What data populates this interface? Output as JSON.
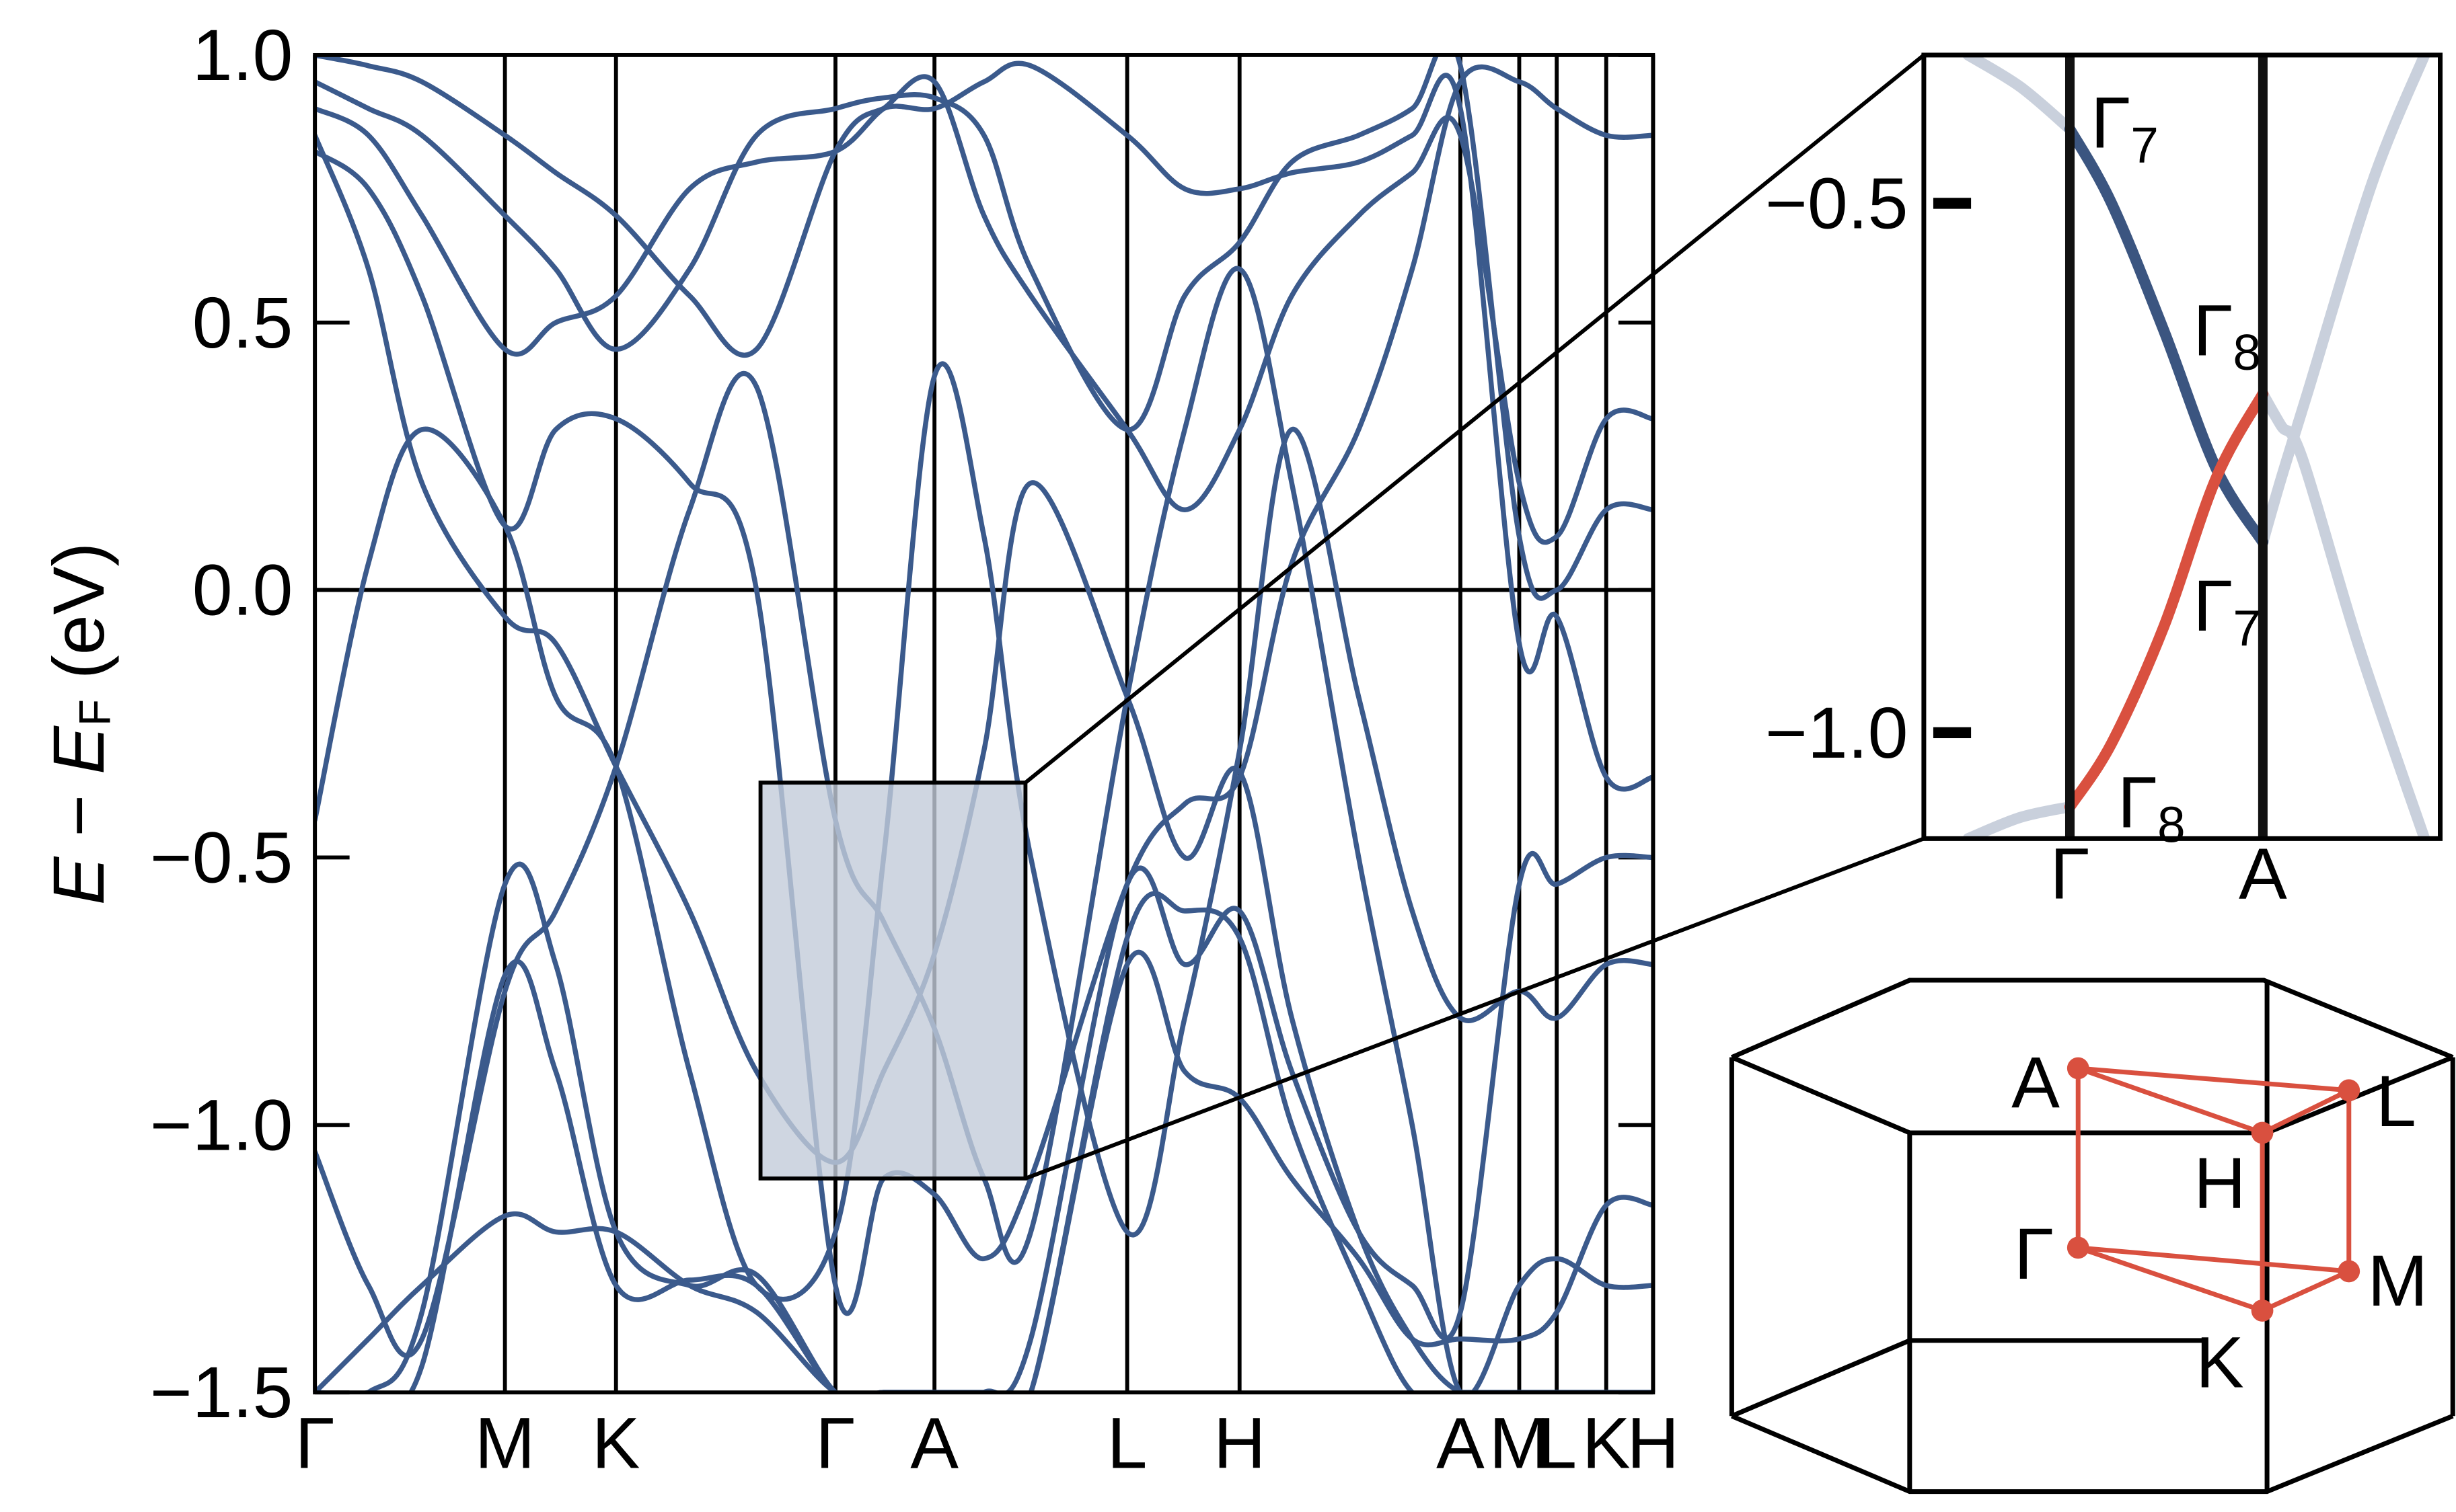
{
  "chart_data": [
    {
      "type": "line",
      "ylabel": [
        "E",
        " − ",
        "E",
        "F",
        " (eV)"
      ],
      "xlim": [
        0,
        1
      ],
      "ylim": [
        -1.5,
        1.0
      ],
      "xticks": [
        {
          "value": 0,
          "label": "Γ"
        },
        {
          "value": 0.142,
          "label": "M"
        },
        {
          "value": 0.225,
          "label": "K"
        },
        {
          "value": 0.389,
          "label": "Γ"
        },
        {
          "value": 0.463,
          "label": "A"
        },
        {
          "value": 0.607,
          "label": "L"
        },
        {
          "value": 0.691,
          "label": "H"
        },
        {
          "value": 0.856,
          "label": "A"
        },
        {
          "value": 0.9,
          "label": "M"
        },
        {
          "value": 0.928,
          "label": "L"
        },
        {
          "value": 0.965,
          "label": "K"
        },
        {
          "value": 1.0,
          "label": "H"
        }
      ],
      "yticks": [
        {
          "value": -1.5,
          "label": "−1.5"
        },
        {
          "value": -1.0,
          "label": "−1.0"
        },
        {
          "value": -0.5,
          "label": "−0.5"
        },
        {
          "value": 0,
          "label": "0.0"
        },
        {
          "value": 0.5,
          "label": "0.5"
        },
        {
          "value": 1.0,
          "label": "1.0"
        }
      ],
      "hlines": [
        0
      ],
      "color": "#3b5a8c",
      "x": [
        0,
        0.04,
        0.08,
        0.142,
        0.18,
        0.225,
        0.28,
        0.33,
        0.389,
        0.425,
        0.463,
        0.5,
        0.535,
        0.607,
        0.65,
        0.691,
        0.73,
        0.78,
        0.82,
        0.856,
        0.9,
        0.928,
        0.965,
        1.0
      ],
      "series": [
        {
          "values": [
            -0.43,
            0.05,
            0.3,
            0.12,
            -0.2,
            -0.33,
            -0.9,
            -1.3,
            -1.2,
            -0.5,
            0.4,
            0.1,
            -0.5,
            -1.2,
            -0.8,
            -0.3,
            0.3,
            -0.2,
            -0.6,
            -0.8,
            -0.75,
            -0.8,
            -0.7,
            -0.7
          ]
        },
        {
          "values": [
            -1.05,
            -1.3,
            -1.4,
            -0.75,
            -0.6,
            -0.33,
            0.15,
            0.38,
            -0.43,
            -0.62,
            -0.82,
            -1.1,
            -1.2,
            -0.2,
            0.3,
            0.6,
            0.2,
            -0.5,
            -1.0,
            -1.5,
            -1.3,
            -1.25,
            -1.3,
            -1.3
          ]
        },
        {
          "values": [
            0.85,
            0.6,
            0.2,
            -0.05,
            -0.1,
            -0.33,
            -0.6,
            -0.9,
            -1.07,
            -0.9,
            -0.68,
            -0.3,
            0.2,
            -0.2,
            -0.5,
            -0.34,
            -0.8,
            -1.2,
            -1.4,
            -1.5,
            -1.5,
            -1.5,
            -1.5,
            -1.5
          ]
        },
        {
          "values": [
            0.82,
            0.75,
            0.55,
            0.12,
            0.3,
            0.32,
            0.2,
            0.0,
            -1.3,
            -1.1,
            -1.13,
            -1.25,
            -1.1,
            -0.55,
            -0.4,
            -0.35,
            0.05,
            0.3,
            0.6,
            0.95,
            0.95,
            0.9,
            0.85,
            0.85
          ]
        },
        {
          "values": [
            0.9,
            0.85,
            0.7,
            0.45,
            0.5,
            0.55,
            0.75,
            0.8,
            0.82,
            0.9,
            0.95,
            0.7,
            0.55,
            0.3,
            0.15,
            0.3,
            0.55,
            0.7,
            0.78,
            0.85,
            0.2,
            0.1,
            0.32,
            0.32
          ]
        },
        {
          "values": [
            0.95,
            0.9,
            0.85,
            0.7,
            0.6,
            0.45,
            0.6,
            0.85,
            0.9,
            0.92,
            0.92,
            0.85,
            0.6,
            0.3,
            0.55,
            0.65,
            0.8,
            0.85,
            0.9,
            0.98,
            0.1,
            0.0,
            0.15,
            0.15
          ]
        },
        {
          "values": [
            1.0,
            0.98,
            0.95,
            0.85,
            0.78,
            0.7,
            0.55,
            0.45,
            0.82,
            0.9,
            0.9,
            0.95,
            0.98,
            0.85,
            0.75,
            0.75,
            0.78,
            0.8,
            0.85,
            0.9,
            -0.1,
            -0.05,
            -0.35,
            -0.35
          ]
        },
        {
          "values": [
            -1.5,
            -1.5,
            -1.35,
            -0.55,
            -0.7,
            -1.2,
            -1.3,
            -1.28,
            -1.5,
            -1.5,
            -1.5,
            -1.5,
            -1.4,
            -0.55,
            -0.7,
            -0.6,
            -0.9,
            -1.2,
            -1.3,
            -1.35,
            -0.55,
            -0.55,
            -0.5,
            -0.5
          ]
        },
        {
          "values": [
            -1.5,
            -1.5,
            -1.45,
            -0.72,
            -0.9,
            -1.3,
            -1.29,
            -1.3,
            -1.5,
            -1.5,
            -1.5,
            -1.5,
            -1.5,
            -0.7,
            -0.9,
            -0.95,
            -1.1,
            -1.25,
            -1.4,
            -1.4,
            -1.4,
            -1.35,
            -1.15,
            -1.15
          ]
        },
        {
          "values": [
            -1.5,
            -1.4,
            -1.3,
            -1.17,
            -1.2,
            -1.2,
            -1.3,
            -1.35,
            -1.5,
            -1.5,
            -1.5,
            -1.5,
            -1.5,
            -0.65,
            -0.6,
            -0.65,
            -1.0,
            -1.3,
            -1.5,
            -1.5,
            -1.5,
            -1.5,
            -1.5,
            -1.5
          ]
        }
      ]
    },
    {
      "type": "line",
      "xlim": [
        0.333,
        0.531
      ],
      "ylim": [
        -1.1,
        -0.36
      ],
      "xticks": [
        {
          "value": 0.389,
          "label": "Γ"
        },
        {
          "value": 0.463,
          "label": "A"
        }
      ],
      "yticks": [
        {
          "value": -0.5,
          "label": "−0.5"
        },
        {
          "value": -1.0,
          "label": "−1.0"
        }
      ],
      "series": [
        {
          "x": [
            0.35,
            0.37,
            0.389
          ],
          "values": [
            -0.36,
            -0.39,
            -0.43
          ],
          "color": "#c9d0dc"
        },
        {
          "x": [
            0.35,
            0.37,
            0.389
          ],
          "values": [
            -1.1,
            -1.08,
            -1.07
          ],
          "color": "#c9d0dc"
        },
        {
          "x": [
            0.463,
            0.47,
            0.48,
            0.505,
            0.525
          ],
          "values": [
            -0.82,
            -0.76,
            -0.68,
            -0.48,
            -0.36
          ],
          "color": "#c9d0dc"
        },
        {
          "x": [
            0.463,
            0.47,
            0.478,
            0.5,
            0.525
          ],
          "values": [
            -0.68,
            -0.71,
            -0.74,
            -0.92,
            -1.1
          ],
          "color": "#c9d0dc"
        },
        {
          "x": [
            0.389,
            0.405,
            0.425,
            0.445,
            0.463
          ],
          "values": [
            -0.43,
            -0.5,
            -0.62,
            -0.75,
            -0.82
          ],
          "color": "#3b5580"
        },
        {
          "x": [
            0.389,
            0.405,
            0.425,
            0.445,
            0.463
          ],
          "values": [
            -1.07,
            -1.01,
            -0.9,
            -0.76,
            -0.68
          ],
          "color": "#d9503f"
        }
      ],
      "annotations": [
        {
          "text": "Γ",
          "sub": "7",
          "color": "#3b5580"
        },
        {
          "text": "Γ",
          "sub": "8",
          "color": "#d9503f"
        },
        {
          "text": "Γ",
          "sub": "7",
          "color": "#3b5580"
        },
        {
          "text": "Γ",
          "sub": "8",
          "color": "#d9503f"
        }
      ]
    }
  ],
  "brillouin_zone": {
    "labels": [
      "A",
      "L",
      "H",
      "Γ",
      "M",
      "K"
    ]
  }
}
